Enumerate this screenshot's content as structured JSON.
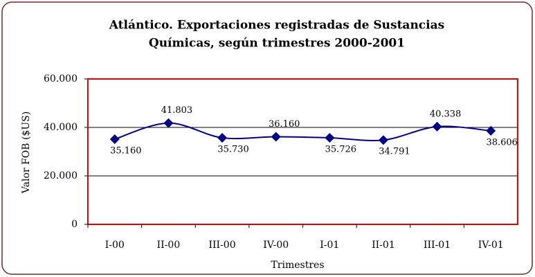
{
  "chart_data": {
    "type": "line",
    "title": [
      "Atlántico. Exportaciones registradas de Sustancias",
      "Químicas, según trimestres 2000-2001"
    ],
    "xlabel": "Trimestres",
    "ylabel": "Valor FOB ($US)",
    "categories": [
      "I-00",
      "II-00",
      "III-00",
      "IV-00",
      "I-01",
      "II-01",
      "III-01",
      "IV-01"
    ],
    "series": [
      {
        "name": "Valor FOB",
        "color": "#000080",
        "values": [
          35160,
          41803,
          35730,
          36160,
          35726,
          34791,
          40338,
          38606
        ],
        "value_labels": [
          "35.160",
          "41.803",
          "35.730",
          "36.160",
          "35.726",
          "34.791",
          "40.338",
          "38.606"
        ]
      }
    ],
    "ylim": [
      0,
      60000
    ],
    "yticks": [
      0,
      {
        "value": 20000,
        "label": "20.000"
      },
      {
        "value": 40000,
        "label": "40.000"
      },
      {
        "value": 60000,
        "label": "60.000"
      }
    ],
    "grid": true,
    "smooth": true
  }
}
